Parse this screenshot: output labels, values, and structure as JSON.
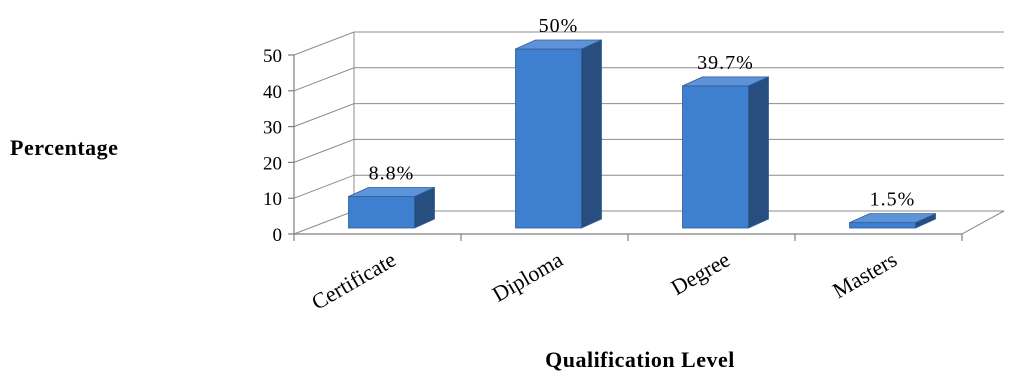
{
  "chart_data": {
    "type": "bar",
    "categories": [
      "Certificate",
      "Diploma",
      "Degree",
      "Masters"
    ],
    "values": [
      8.8,
      50,
      39.7,
      1.5
    ],
    "data_labels": [
      "8.8%",
      "50%",
      "39.7%",
      "1.5%"
    ],
    "title": "",
    "xlabel": "Qualification Level",
    "ylabel": "Percentage",
    "ylim": [
      0,
      50
    ],
    "yticks": [
      0,
      10,
      20,
      30,
      40,
      50
    ],
    "grid": true,
    "three_d": true,
    "colors": {
      "front": "#3f7fd0",
      "side": "#274e7f",
      "top": "#5d93d8",
      "edge": "#2f5d96"
    }
  }
}
